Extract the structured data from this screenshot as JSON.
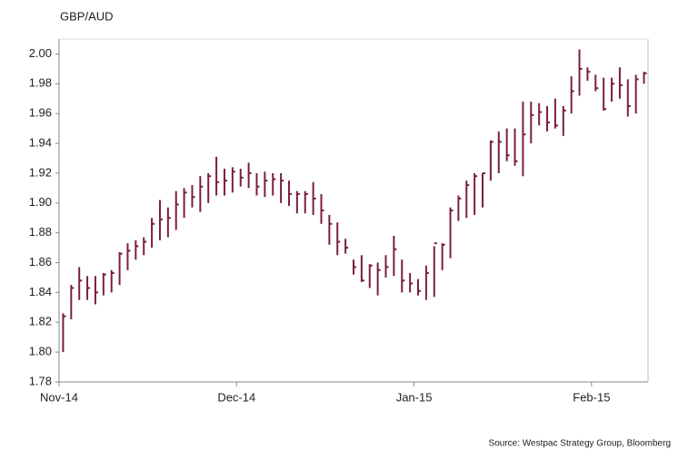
{
  "chart_data": {
    "type": "hlc",
    "title": "GBP/AUD",
    "source": "Source: Westpac Strategy Group, Bloomberg",
    "categories": [
      "Nov-14",
      null,
      null,
      null,
      null,
      null,
      null,
      null,
      null,
      null,
      null,
      null,
      null,
      null,
      null,
      null,
      null,
      null,
      null,
      null,
      null,
      null,
      "Dec-14",
      null,
      null,
      null,
      null,
      null,
      null,
      null,
      null,
      null,
      null,
      null,
      null,
      null,
      null,
      null,
      null,
      null,
      null,
      null,
      null,
      null,
      "Jan-15",
      null,
      null,
      null,
      null,
      null,
      null,
      null,
      null,
      null,
      null,
      null,
      null,
      null,
      null,
      null,
      null,
      null,
      null,
      null,
      null,
      null,
      "Feb-15",
      null,
      null,
      null,
      null,
      null,
      null
    ],
    "high": [
      1.826,
      1.845,
      1.857,
      1.851,
      1.851,
      1.853,
      1.855,
      1.867,
      1.873,
      1.875,
      1.877,
      1.89,
      1.902,
      1.897,
      1.908,
      1.91,
      1.912,
      1.918,
      1.92,
      1.931,
      1.923,
      1.924,
      1.923,
      1.927,
      1.92,
      1.921,
      1.92,
      1.92,
      1.915,
      1.908,
      1.908,
      1.914,
      1.906,
      1.892,
      1.887,
      1.876,
      1.862,
      1.865,
      1.859,
      1.86,
      1.865,
      1.878,
      1.862,
      1.853,
      1.849,
      1.858,
      1.871,
      1.873,
      1.897,
      1.905,
      1.915,
      1.92,
      1.92,
      1.942,
      1.948,
      1.95,
      1.95,
      1.968,
      1.968,
      1.967,
      1.965,
      1.97,
      1.965,
      1.985,
      2.003,
      1.991,
      1.986,
      1.984,
      1.984,
      1.991,
      1.983,
      1.986,
      1.988
    ],
    "low": [
      1.8,
      1.822,
      1.835,
      1.835,
      1.832,
      1.838,
      1.84,
      1.845,
      1.855,
      1.862,
      1.865,
      1.87,
      1.875,
      1.877,
      1.882,
      1.89,
      1.897,
      1.894,
      1.9,
      1.905,
      1.905,
      1.907,
      1.911,
      1.91,
      1.905,
      1.904,
      1.905,
      1.9,
      1.898,
      1.893,
      1.893,
      1.892,
      1.886,
      1.872,
      1.865,
      1.866,
      1.852,
      1.847,
      1.843,
      1.838,
      1.85,
      1.851,
      1.84,
      1.84,
      1.838,
      1.835,
      1.837,
      1.855,
      1.863,
      1.888,
      1.89,
      1.892,
      1.897,
      1.915,
      1.92,
      1.928,
      1.925,
      1.918,
      1.94,
      1.952,
      1.948,
      1.95,
      1.945,
      1.96,
      1.972,
      1.982,
      1.975,
      1.962,
      1.968,
      1.97,
      1.958,
      1.96,
      1.98
    ],
    "close": [
      1.824,
      1.843,
      1.848,
      1.843,
      1.84,
      1.852,
      1.853,
      1.866,
      1.868,
      1.871,
      1.874,
      1.886,
      1.889,
      1.89,
      1.899,
      1.907,
      1.904,
      1.911,
      1.918,
      1.914,
      1.915,
      1.921,
      1.917,
      1.92,
      1.911,
      1.915,
      1.916,
      1.915,
      1.906,
      1.906,
      1.906,
      1.903,
      1.895,
      1.886,
      1.874,
      1.87,
      1.857,
      1.848,
      1.858,
      1.855,
      1.857,
      1.869,
      1.848,
      1.846,
      1.841,
      1.853,
      1.873,
      1.872,
      1.895,
      1.903,
      1.912,
      1.918,
      1.92,
      1.941,
      1.941,
      1.932,
      1.928,
      1.946,
      1.959,
      1.961,
      1.954,
      1.952,
      1.962,
      1.975,
      1.99,
      1.988,
      1.977,
      1.963,
      1.98,
      1.979,
      1.965,
      1.983,
      1.987
    ],
    "color": "#7a1f3d",
    "ylim": [
      1.78,
      2.01
    ],
    "yticks": [
      1.78,
      {
        "value": 1.8,
        "label": "1.80"
      },
      1.82,
      1.84,
      1.86,
      1.88,
      {
        "value": 1.9,
        "label": "1.90"
      },
      1.92,
      1.94,
      1.96,
      1.98,
      {
        "value": 2,
        "label": "2.00"
      }
    ]
  }
}
